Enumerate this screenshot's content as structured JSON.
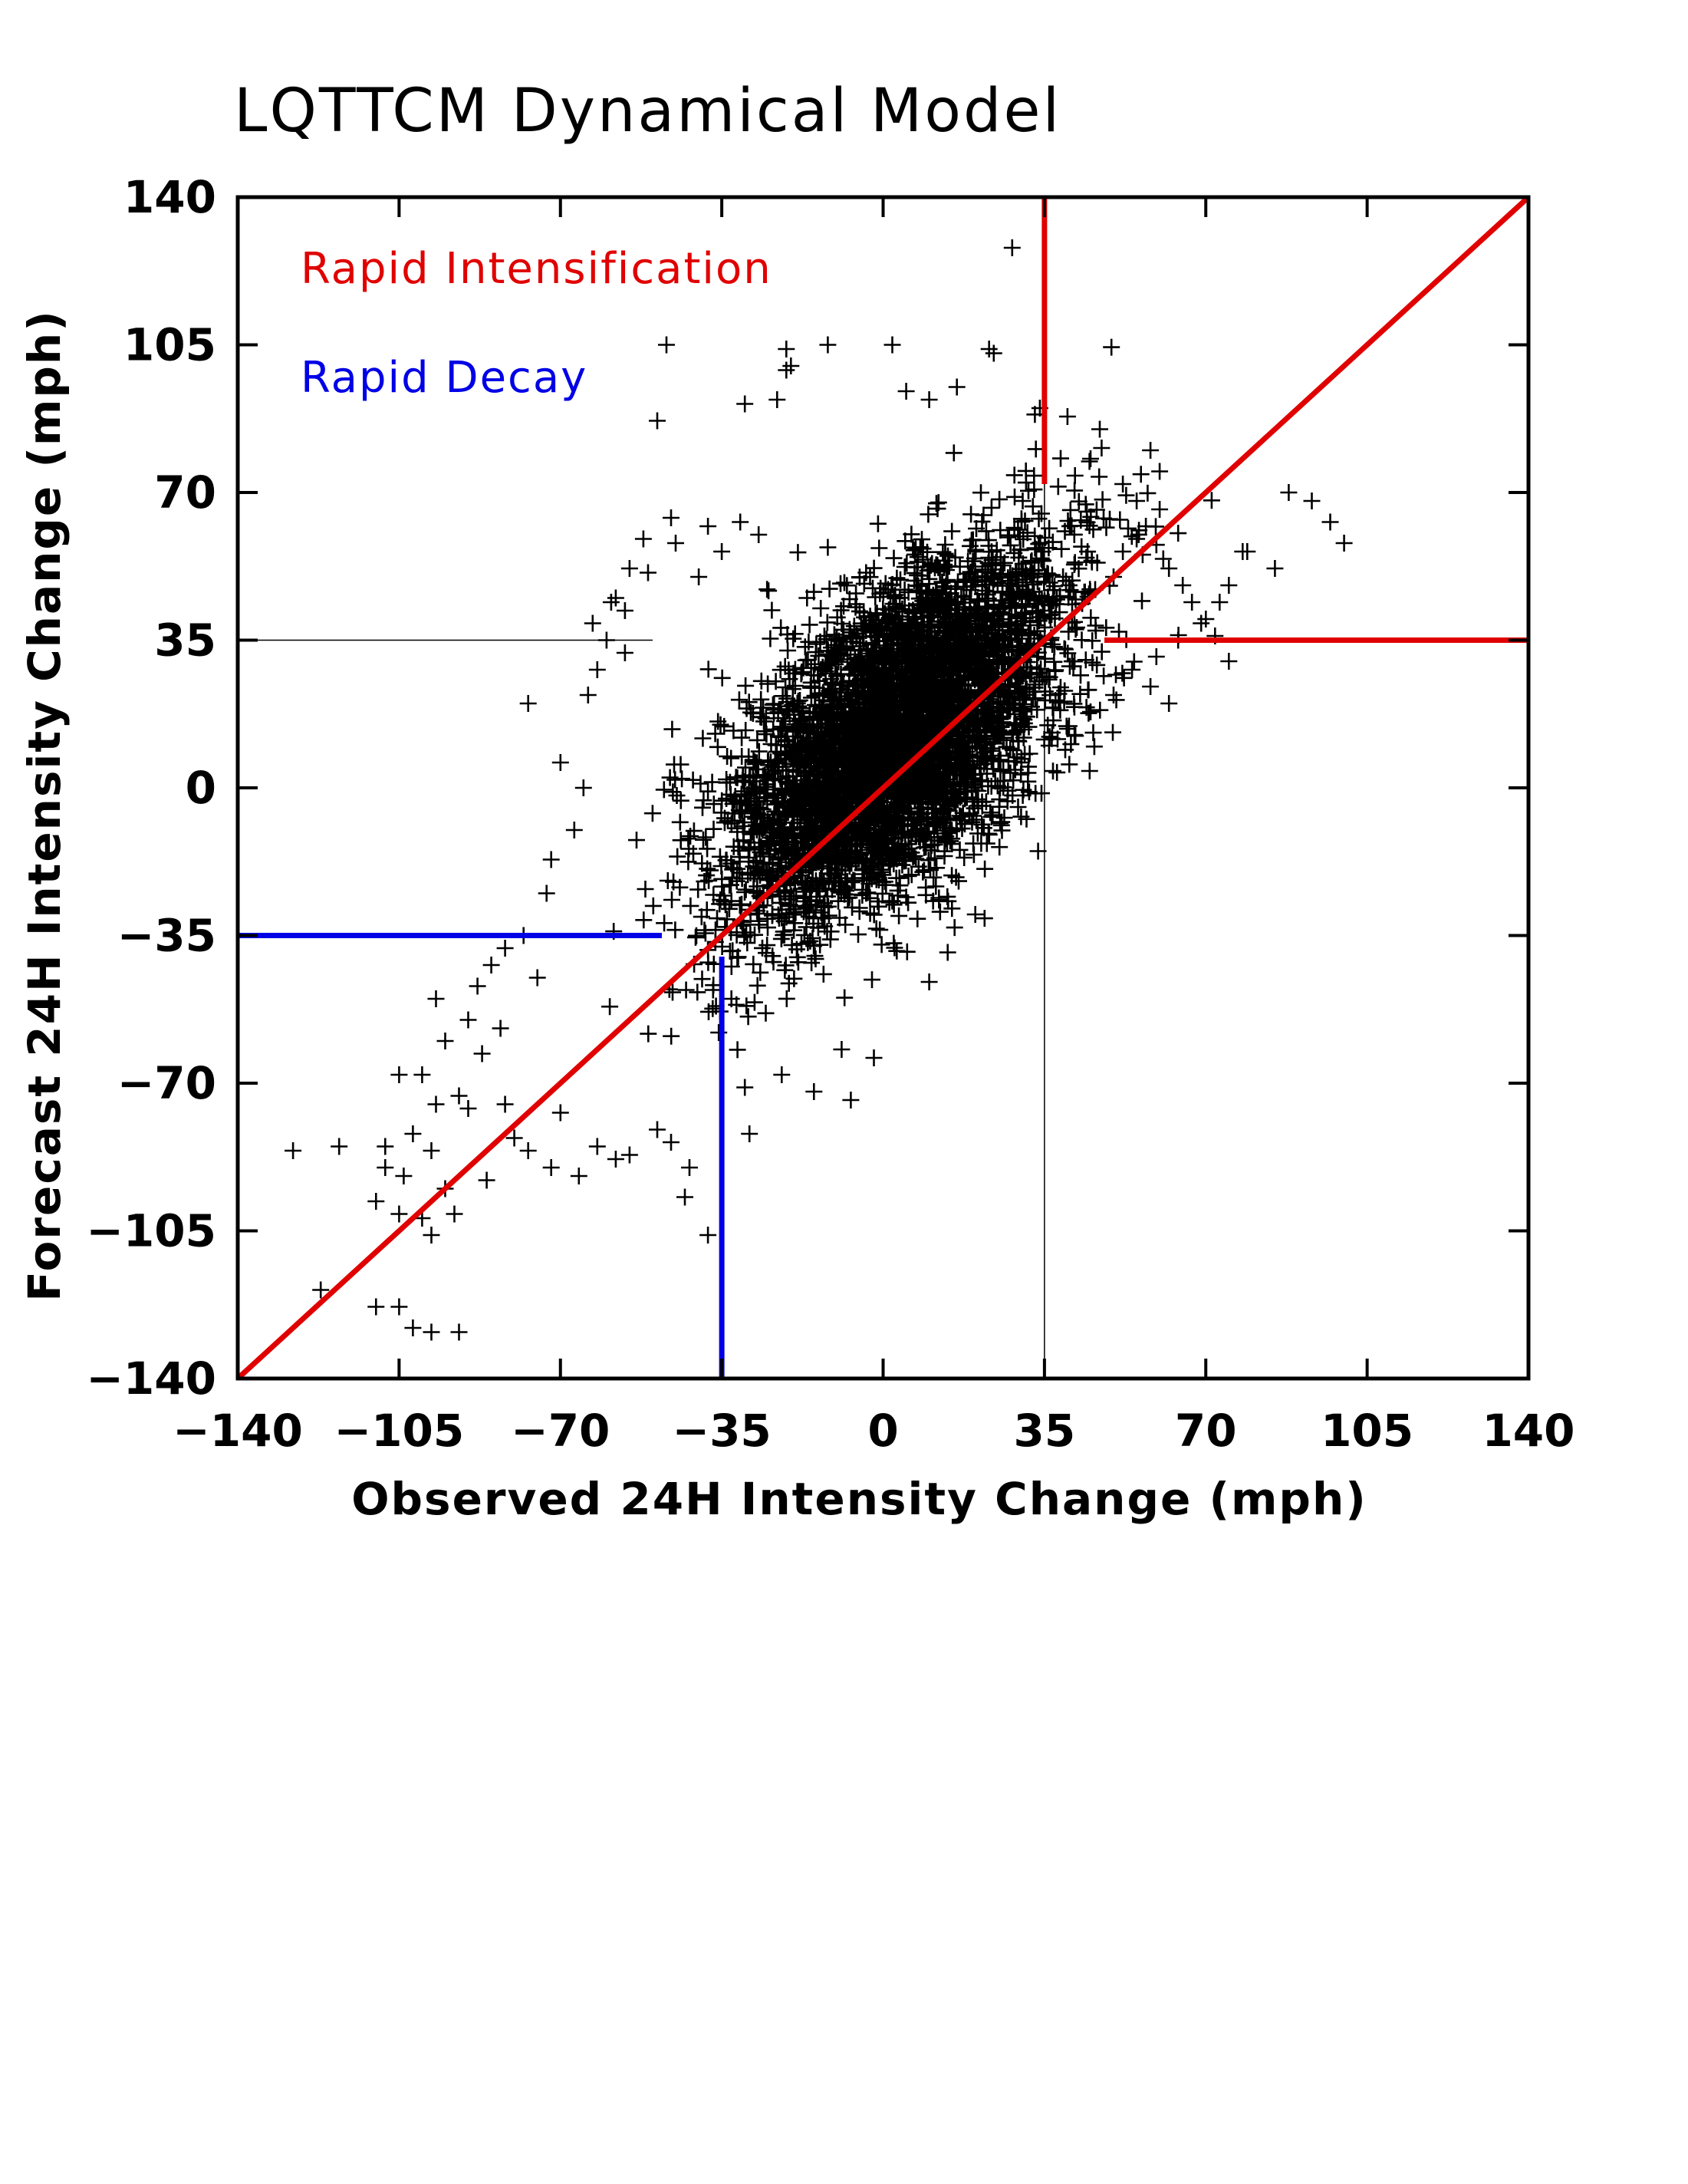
{
  "chart_data": {
    "type": "scatter",
    "title": "LQTTCM Dynamical Model",
    "xlabel": "Observed 24H Intensity Change (mph)",
    "ylabel": "Forecast 24H Intensity Change (mph)",
    "xlim": [
      -140,
      140
    ],
    "ylim": [
      -140,
      140
    ],
    "xticks": [
      "−140",
      "−105",
      "−70",
      "−35",
      "0",
      "35",
      "70",
      "105",
      "140"
    ],
    "yticks": [
      "140",
      "105",
      "70",
      "35",
      "0",
      "−35",
      "−70",
      "−105",
      "−140"
    ],
    "tick_values": [
      -140,
      -105,
      -70,
      -35,
      0,
      35,
      70,
      105,
      140
    ],
    "legend": [
      {
        "label": "Rapid Intensification",
        "color": "#e00000"
      },
      {
        "label": "Rapid Decay",
        "color": "#0000e6"
      }
    ],
    "thresholds": {
      "rapid_intensification": 35,
      "rapid_decay": -35
    },
    "marker": "+",
    "grid": false,
    "core_distribution": {
      "center_x": 3,
      "center_y": 12,
      "sd_x": 18,
      "sd_y": 22,
      "correlation": 0.62
    },
    "outliers": [
      [
        28,
        128
      ],
      [
        -47,
        105
      ],
      [
        -21,
        104
      ],
      [
        -12,
        105
      ],
      [
        2,
        105
      ],
      [
        23,
        104
      ],
      [
        24,
        103
      ],
      [
        -49,
        87
      ],
      [
        -30,
        91
      ],
      [
        -23,
        92
      ],
      [
        -21,
        99
      ],
      [
        -20,
        100
      ],
      [
        5,
        94
      ],
      [
        10,
        92
      ],
      [
        16,
        95
      ],
      [
        -46,
        64
      ],
      [
        -52,
        59
      ],
      [
        -38,
        62
      ],
      [
        -31,
        63
      ],
      [
        -55,
        52
      ],
      [
        -51,
        51
      ],
      [
        -58,
        45
      ],
      [
        -59,
        44
      ],
      [
        -60,
        35
      ],
      [
        -56,
        32
      ],
      [
        -62,
        28
      ],
      [
        -64,
        22
      ],
      [
        -70,
        6
      ],
      [
        -65,
        0
      ],
      [
        -67,
        -10
      ],
      [
        -72,
        -17
      ],
      [
        -73,
        -25
      ],
      [
        -78,
        -35
      ],
      [
        -82,
        -38
      ],
      [
        -85,
        -42
      ],
      [
        -88,
        -47
      ],
      [
        -97,
        -50
      ],
      [
        -90,
        -55
      ],
      [
        -95,
        -60
      ],
      [
        -100,
        -68
      ],
      [
        -105,
        -68
      ],
      [
        -92,
        -73
      ],
      [
        -97,
        -75
      ],
      [
        -102,
        -82
      ],
      [
        -98,
        -86
      ],
      [
        -108,
        -85
      ],
      [
        -108,
        -90
      ],
      [
        -104,
        -92
      ],
      [
        -118,
        -85
      ],
      [
        -95,
        -95
      ],
      [
        -100,
        -102
      ],
      [
        -98,
        -106
      ],
      [
        -105,
        -101
      ],
      [
        -93,
        -101
      ],
      [
        -110,
        -123
      ],
      [
        -105,
        -123
      ],
      [
        -102,
        -128
      ],
      [
        -98,
        -129
      ],
      [
        -92,
        -129
      ],
      [
        -122,
        -119
      ],
      [
        -128,
        -86
      ],
      [
        -82,
        -75
      ],
      [
        -80,
        -83
      ],
      [
        -77,
        -86
      ],
      [
        -70,
        -77
      ],
      [
        -72,
        -90
      ],
      [
        -66,
        -92
      ],
      [
        -62,
        -85
      ],
      [
        -58,
        -88
      ],
      [
        -55,
        -87
      ],
      [
        -49,
        -81
      ],
      [
        -46,
        -84
      ],
      [
        -42,
        -90
      ],
      [
        -43,
        -97
      ],
      [
        -38,
        -106
      ],
      [
        -30,
        -71
      ],
      [
        -15,
        -72
      ],
      [
        -7,
        -74
      ],
      [
        -29,
        -82
      ],
      [
        -22,
        -68
      ],
      [
        -9,
        -62
      ],
      [
        -2,
        -64
      ],
      [
        10,
        -46
      ],
      [
        14,
        -39
      ],
      [
        20,
        -30
      ],
      [
        42,
        38
      ],
      [
        46,
        47
      ],
      [
        50,
        50
      ],
      [
        52,
        56
      ],
      [
        55,
        59
      ],
      [
        57,
        62
      ],
      [
        60,
        66
      ],
      [
        62,
        52
      ],
      [
        65,
        48
      ],
      [
        67,
        44
      ],
      [
        70,
        40
      ],
      [
        72,
        36
      ],
      [
        73,
        44
      ],
      [
        75,
        48
      ],
      [
        78,
        56
      ],
      [
        79,
        56
      ],
      [
        85,
        52
      ],
      [
        88,
        70
      ],
      [
        93,
        68
      ],
      [
        97,
        63
      ],
      [
        100,
        58
      ],
      [
        64,
        35
      ],
      [
        69,
        39
      ],
      [
        75,
        30
      ],
      [
        62,
        20
      ],
      [
        58,
        24
      ],
      [
        54,
        28
      ],
      [
        50,
        22
      ],
      [
        45,
        18
      ],
      [
        40,
        14
      ],
      [
        36,
        10
      ],
      [
        30,
        6
      ],
      [
        52,
        72
      ],
      [
        55,
        68
      ],
      [
        60,
        75
      ],
      [
        58,
        80
      ],
      [
        45,
        78
      ],
      [
        47,
        85
      ],
      [
        40,
        88
      ],
      [
        34,
        90
      ],
      [
        -56,
        42
      ],
      [
        -40,
        50
      ],
      [
        -35,
        56
      ],
      [
        -27,
        60
      ],
      [
        -12,
        57
      ],
      [
        -45,
        58
      ],
      [
        -63,
        39
      ],
      [
        -77,
        20
      ],
      [
        -75,
        -45
      ],
      [
        -83,
        -57
      ],
      [
        -87,
        -63
      ],
      [
        -90,
        -76
      ],
      [
        -110,
        -98
      ],
      [
        -86,
        -93
      ]
    ]
  }
}
